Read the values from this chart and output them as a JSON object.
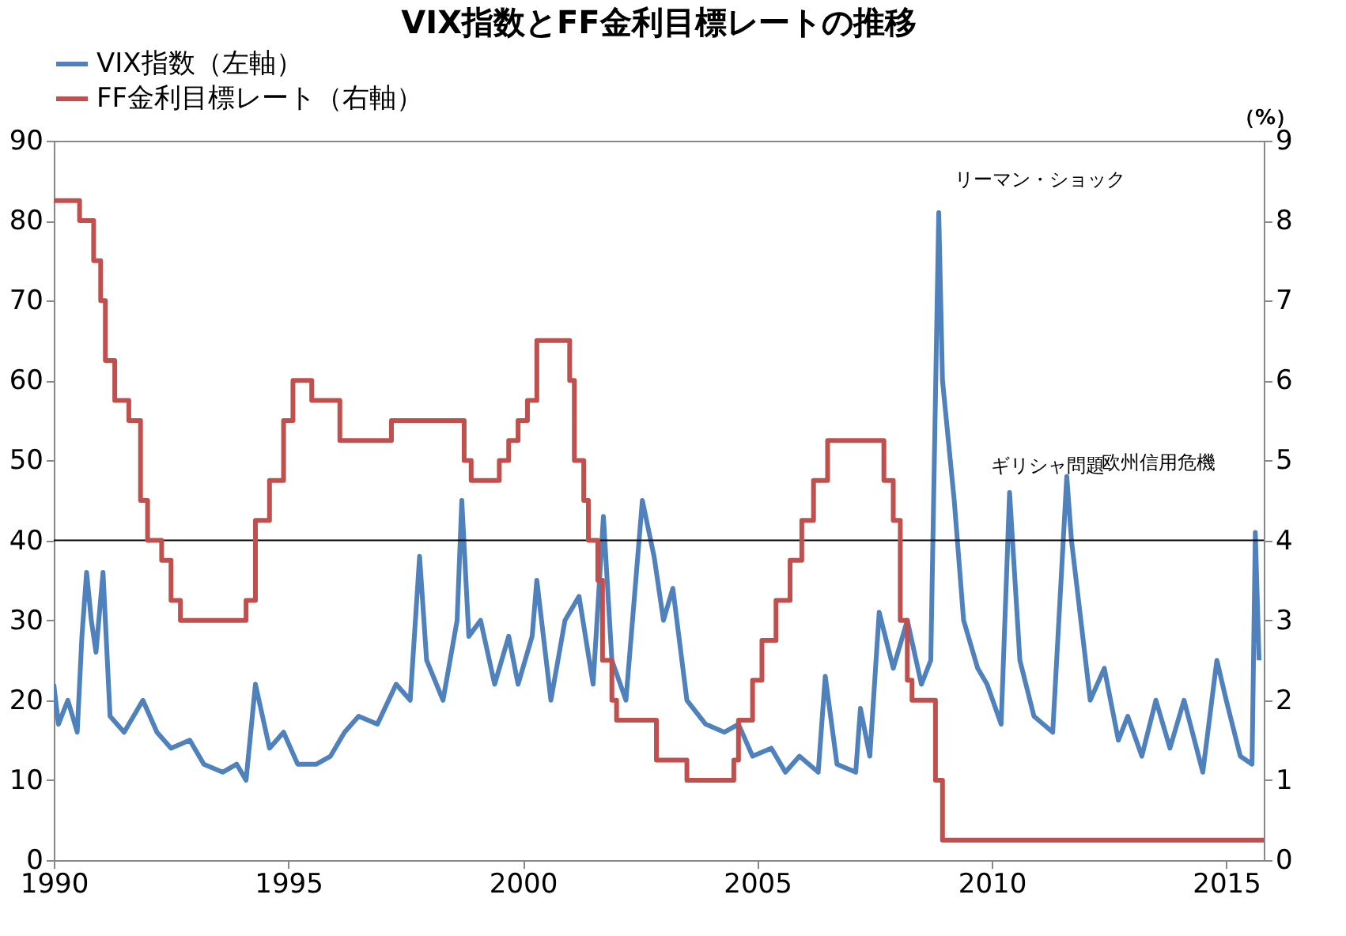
{
  "chart_data": {
    "type": "line",
    "title": "VIX指数とFF金利目標レートの推移",
    "y2label": "（%）",
    "xlim": [
      1990,
      2015.8
    ],
    "xticks": [
      1990,
      1995,
      2000,
      2005,
      2010,
      2015
    ],
    "ylim": [
      0,
      90
    ],
    "yticks": [
      0,
      10,
      20,
      30,
      40,
      50,
      60,
      70,
      80,
      90
    ],
    "y2lim": [
      0,
      9
    ],
    "y2ticks": [
      0,
      1,
      2,
      3,
      4,
      5,
      6,
      7,
      8,
      9
    ],
    "grid": false,
    "legend": "top",
    "marker": "none",
    "line_style": "solid",
    "series": [
      {
        "name": "VIX指数（左軸）",
        "color": "#4f81bd",
        "x": [
          1990.0,
          1990.1,
          1990.3,
          1990.5,
          1990.6,
          1990.7,
          1990.8,
          1990.9,
          1991.05,
          1991.2,
          1991.5,
          1991.9,
          1992.2,
          1992.5,
          1992.9,
          1993.2,
          1993.6,
          1993.9,
          1994.1,
          1994.3,
          1994.6,
          1994.9,
          1995.2,
          1995.6,
          1995.9,
          1996.2,
          1996.5,
          1996.9,
          1997.3,
          1997.6,
          1997.8,
          1997.95,
          1998.3,
          1998.6,
          1998.7,
          1998.85,
          1999.1,
          1999.4,
          1999.7,
          1999.9,
          2000.2,
          2000.3,
          2000.6,
          2000.9,
          2001.2,
          2001.5,
          2001.72,
          2001.9,
          2002.2,
          2002.55,
          2002.8,
          2003.0,
          2003.2,
          2003.5,
          2003.9,
          2004.3,
          2004.6,
          2004.9,
          2005.3,
          2005.6,
          2005.9,
          2006.3,
          2006.45,
          2006.7,
          2007.1,
          2007.2,
          2007.4,
          2007.6,
          2007.9,
          2008.2,
          2008.5,
          2008.7,
          2008.87,
          2008.95,
          2009.2,
          2009.4,
          2009.7,
          2009.9,
          2010.2,
          2010.38,
          2010.6,
          2010.9,
          2011.3,
          2011.6,
          2011.7,
          2011.9,
          2012.1,
          2012.4,
          2012.7,
          2012.9,
          2013.2,
          2013.5,
          2013.8,
          2014.1,
          2014.5,
          2014.8,
          2015.0,
          2015.3,
          2015.55,
          2015.62,
          2015.7
        ],
        "values": [
          22,
          17,
          20,
          16,
          28,
          36,
          30,
          26,
          36,
          18,
          16,
          20,
          16,
          14,
          15,
          12,
          11,
          12,
          10,
          22,
          14,
          16,
          12,
          12,
          13,
          16,
          18,
          17,
          22,
          20,
          38,
          25,
          20,
          30,
          45,
          28,
          30,
          22,
          28,
          22,
          28,
          35,
          20,
          30,
          33,
          22,
          43,
          25,
          20,
          45,
          38,
          30,
          34,
          20,
          17,
          16,
          17,
          13,
          14,
          11,
          13,
          11,
          23,
          12,
          11,
          19,
          13,
          31,
          24,
          30,
          22,
          25,
          81,
          60,
          45,
          30,
          24,
          22,
          17,
          46,
          25,
          18,
          16,
          48,
          40,
          30,
          20,
          24,
          15,
          18,
          13,
          20,
          14,
          20,
          11,
          25,
          20,
          13,
          12,
          41,
          25
        ]
      },
      {
        "name": "FF金利目標レート（右軸）",
        "color": "#c0504d",
        "type": "step",
        "axis": "y2",
        "x": [
          1990.0,
          1990.55,
          1990.85,
          1991.0,
          1991.1,
          1991.3,
          1991.6,
          1991.85,
          1992.0,
          1992.3,
          1992.5,
          1992.7,
          1994.1,
          1994.3,
          1994.6,
          1994.9,
          1995.1,
          1995.5,
          1996.1,
          1997.2,
          1998.75,
          1998.9,
          1999.5,
          1999.7,
          1999.9,
          2000.1,
          2000.3,
          2001.0,
          2001.1,
          2001.3,
          2001.4,
          2001.6,
          2001.7,
          2001.9,
          2002.0,
          2002.85,
          2003.5,
          2004.5,
          2004.6,
          2004.9,
          2005.1,
          2005.4,
          2005.7,
          2005.95,
          2006.2,
          2006.5,
          2007.7,
          2007.9,
          2008.05,
          2008.2,
          2008.3,
          2008.8,
          2008.95,
          2015.8
        ],
        "values": [
          8.25,
          8.0,
          7.5,
          7.0,
          6.25,
          5.75,
          5.5,
          4.5,
          4.0,
          3.75,
          3.25,
          3.0,
          3.25,
          4.25,
          4.75,
          5.5,
          6.0,
          5.75,
          5.25,
          5.5,
          5.0,
          4.75,
          5.0,
          5.25,
          5.5,
          5.75,
          6.5,
          6.0,
          5.0,
          4.5,
          4.0,
          3.5,
          2.5,
          2.0,
          1.75,
          1.25,
          1.0,
          1.25,
          1.75,
          2.25,
          2.75,
          3.25,
          3.75,
          4.25,
          4.75,
          5.25,
          4.75,
          4.25,
          3.0,
          2.25,
          2.0,
          1.0,
          0.25,
          0.25
        ]
      }
    ],
    "ref_lines": [
      {
        "axis": "y",
        "value": 40,
        "color": "#000000"
      }
    ],
    "annotations": [
      {
        "text": "リーマン・ショック",
        "x": 2008.87,
        "y": 81
      },
      {
        "text": "ギリシャ問題",
        "x": 2010.38,
        "y": 46
      },
      {
        "text": "欧州信用危機",
        "x": 2011.6,
        "y": 48
      }
    ]
  }
}
